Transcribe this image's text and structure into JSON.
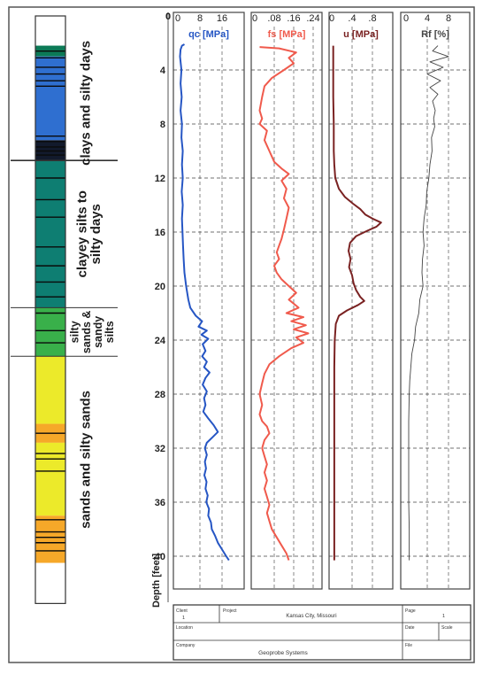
{
  "chart_data": {
    "type": "line",
    "depth_axis": {
      "label": "Depth [feet]",
      "range": [
        0,
        40
      ],
      "ticks": [
        4,
        8,
        12,
        16,
        20,
        24,
        28,
        32,
        36,
        40
      ]
    },
    "strata": [
      {
        "label": "clays and silty days",
        "top": 2.2,
        "bottom": 10.7
      },
      {
        "label": "clayey silts to silty days",
        "top": 10.7,
        "bottom": 21.6
      },
      {
        "label": "silty sands & sandy silts",
        "top": 21.6,
        "bottom": 25.2
      },
      {
        "label": "sands and silty sands",
        "top": 25.2,
        "bottom": 40.5
      }
    ],
    "soil_column": {
      "bands": [
        {
          "top": 0.0,
          "bottom": 2.2,
          "color": "#ffffff"
        },
        {
          "top": 2.2,
          "bottom": 3.0,
          "color": "#0c7a56"
        },
        {
          "top": 3.0,
          "bottom": 9.2,
          "color": "#2f6fd0"
        },
        {
          "top": 9.2,
          "bottom": 10.7,
          "color": "#121a2c"
        },
        {
          "top": 10.7,
          "bottom": 21.6,
          "color": "#0e7e72"
        },
        {
          "top": 21.6,
          "bottom": 25.2,
          "color": "#39b04a"
        },
        {
          "top": 25.2,
          "bottom": 30.2,
          "color": "#ecea2a"
        },
        {
          "top": 30.2,
          "bottom": 31.6,
          "color": "#f6a829"
        },
        {
          "top": 31.6,
          "bottom": 37.0,
          "color": "#ecea2a"
        },
        {
          "top": 37.0,
          "bottom": 40.5,
          "color": "#f6a829"
        },
        {
          "top": 40.5,
          "bottom": 43.5,
          "color": "#ffffff"
        }
      ],
      "lines": [
        2.6,
        3.1,
        3.8,
        4.3,
        4.8,
        5.2,
        8.9,
        9.3,
        9.7,
        10.0,
        10.3,
        12.0,
        13.6,
        14.9,
        17.1,
        18.5,
        19.7,
        20.8,
        22.0,
        23.3,
        24.2,
        30.9,
        32.4,
        32.8,
        33.7,
        37.3,
        38.2,
        38.6,
        39.0,
        39.6
      ]
    },
    "panels": [
      {
        "label": "qc [MPa]",
        "color": "#2656c4",
        "xlim": [
          0,
          24
        ],
        "x_ticks": [
          0,
          8,
          16
        ],
        "x_tick_labels": [
          "0",
          "8",
          "16"
        ],
        "points": [
          [
            2.4,
            2.1
          ],
          [
            1.5,
            2.2
          ],
          [
            1.0,
            2.5
          ],
          [
            0.8,
            3.0
          ],
          [
            1.3,
            4.0
          ],
          [
            1.0,
            5.0
          ],
          [
            1.4,
            6.0
          ],
          [
            1.0,
            7.0
          ],
          [
            1.5,
            8.0
          ],
          [
            1.3,
            9.0
          ],
          [
            1.8,
            10.0
          ],
          [
            1.5,
            11.0
          ],
          [
            1.8,
            12.0
          ],
          [
            1.4,
            13.0
          ],
          [
            1.8,
            14.0
          ],
          [
            1.5,
            15.0
          ],
          [
            1.7,
            16.0
          ],
          [
            1.9,
            17.0
          ],
          [
            2.1,
            18.0
          ],
          [
            2.4,
            19.0
          ],
          [
            3.0,
            20.0
          ],
          [
            3.8,
            21.0
          ],
          [
            4.5,
            21.6
          ],
          [
            6.5,
            22.2
          ],
          [
            8.8,
            22.6
          ],
          [
            7.5,
            23.0
          ],
          [
            10.5,
            23.3
          ],
          [
            8.5,
            23.6
          ],
          [
            11.0,
            23.9
          ],
          [
            9.0,
            24.3
          ],
          [
            10.0,
            24.8
          ],
          [
            8.8,
            25.2
          ],
          [
            10.5,
            25.6
          ],
          [
            9.5,
            26.0
          ],
          [
            11.5,
            26.4
          ],
          [
            10.0,
            26.8
          ],
          [
            9.0,
            27.3
          ],
          [
            10.5,
            27.8
          ],
          [
            9.5,
            28.3
          ],
          [
            10.0,
            28.8
          ],
          [
            9.2,
            29.3
          ],
          [
            11.0,
            29.8
          ],
          [
            13.0,
            30.3
          ],
          [
            14.5,
            30.8
          ],
          [
            12.5,
            31.2
          ],
          [
            10.5,
            31.6
          ],
          [
            9.8,
            32.0
          ],
          [
            10.5,
            32.5
          ],
          [
            9.8,
            33.0
          ],
          [
            10.2,
            33.5
          ],
          [
            9.6,
            34.0
          ],
          [
            10.4,
            34.5
          ],
          [
            10.0,
            35.0
          ],
          [
            10.8,
            35.5
          ],
          [
            10.3,
            36.0
          ],
          [
            11.3,
            36.5
          ],
          [
            11.0,
            37.0
          ],
          [
            12.0,
            37.5
          ],
          [
            12.3,
            38.0
          ],
          [
            13.5,
            38.5
          ],
          [
            14.5,
            39.0
          ],
          [
            16.0,
            39.5
          ],
          [
            17.5,
            40.0
          ],
          [
            18.5,
            40.3
          ]
        ]
      },
      {
        "label": "fs [MPa]",
        "color": "#f05a4c",
        "xlim": [
          0,
          0.24
        ],
        "x_ticks": [
          0,
          0.08,
          0.16,
          0.24
        ],
        "x_tick_labels": [
          "0",
          ".08",
          ".16",
          ".24"
        ],
        "points": [
          [
            0.02,
            2.3
          ],
          [
            0.1,
            2.4
          ],
          [
            0.17,
            2.7
          ],
          [
            0.14,
            3.1
          ],
          [
            0.16,
            3.5
          ],
          [
            0.12,
            4.0
          ],
          [
            0.07,
            4.6
          ],
          [
            0.04,
            5.2
          ],
          [
            0.03,
            6.0
          ],
          [
            0.02,
            7.0
          ],
          [
            0.03,
            7.6
          ],
          [
            0.02,
            8.0
          ],
          [
            0.05,
            8.5
          ],
          [
            0.04,
            9.2
          ],
          [
            0.06,
            10.0
          ],
          [
            0.08,
            10.8
          ],
          [
            0.11,
            11.3
          ],
          [
            0.14,
            11.7
          ],
          [
            0.11,
            12.2
          ],
          [
            0.13,
            12.8
          ],
          [
            0.12,
            13.5
          ],
          [
            0.14,
            14.2
          ],
          [
            0.13,
            15.0
          ],
          [
            0.12,
            15.8
          ],
          [
            0.11,
            16.5
          ],
          [
            0.1,
            17.0
          ],
          [
            0.09,
            17.5
          ],
          [
            0.1,
            18.0
          ],
          [
            0.08,
            18.5
          ],
          [
            0.09,
            19.0
          ],
          [
            0.11,
            19.5
          ],
          [
            0.14,
            20.0
          ],
          [
            0.17,
            20.5
          ],
          [
            0.14,
            21.0
          ],
          [
            0.18,
            21.6
          ],
          [
            0.13,
            22.0
          ],
          [
            0.2,
            22.3
          ],
          [
            0.15,
            22.6
          ],
          [
            0.21,
            22.9
          ],
          [
            0.16,
            23.2
          ],
          [
            0.22,
            23.5
          ],
          [
            0.17,
            23.8
          ],
          [
            0.2,
            24.2
          ],
          [
            0.15,
            24.6
          ],
          [
            0.1,
            25.2
          ],
          [
            0.06,
            25.8
          ],
          [
            0.04,
            26.5
          ],
          [
            0.03,
            27.2
          ],
          [
            0.02,
            28.0
          ],
          [
            0.03,
            28.8
          ],
          [
            0.02,
            29.5
          ],
          [
            0.03,
            30.0
          ],
          [
            0.05,
            30.4
          ],
          [
            0.06,
            30.9
          ],
          [
            0.04,
            31.4
          ],
          [
            0.03,
            32.0
          ],
          [
            0.04,
            32.6
          ],
          [
            0.05,
            33.2
          ],
          [
            0.04,
            33.8
          ],
          [
            0.05,
            34.4
          ],
          [
            0.04,
            35.0
          ],
          [
            0.05,
            35.6
          ],
          [
            0.06,
            36.2
          ],
          [
            0.05,
            36.8
          ],
          [
            0.06,
            37.4
          ],
          [
            0.07,
            38.0
          ],
          [
            0.09,
            38.6
          ],
          [
            0.11,
            39.2
          ],
          [
            0.13,
            39.8
          ],
          [
            0.14,
            40.3
          ]
        ]
      },
      {
        "label": "u [MPa]",
        "color": "#7a2222",
        "xlim": [
          0,
          1.2
        ],
        "x_ticks": [
          0,
          0.4,
          0.8
        ],
        "x_tick_labels": [
          "0",
          ".4",
          ".8"
        ],
        "points": [
          [
            0.03,
            2.2
          ],
          [
            0.03,
            4.0
          ],
          [
            0.03,
            6.0
          ],
          [
            0.04,
            8.0
          ],
          [
            0.04,
            10.0
          ],
          [
            0.05,
            11.0
          ],
          [
            0.07,
            12.0
          ],
          [
            0.14,
            12.8
          ],
          [
            0.26,
            13.4
          ],
          [
            0.42,
            13.9
          ],
          [
            0.56,
            14.3
          ],
          [
            0.66,
            14.7
          ],
          [
            0.8,
            15.0
          ],
          [
            0.97,
            15.3
          ],
          [
            0.88,
            15.6
          ],
          [
            0.7,
            15.9
          ],
          [
            0.48,
            16.3
          ],
          [
            0.36,
            16.8
          ],
          [
            0.33,
            17.4
          ],
          [
            0.37,
            18.0
          ],
          [
            0.34,
            18.6
          ],
          [
            0.4,
            19.2
          ],
          [
            0.43,
            19.8
          ],
          [
            0.48,
            20.3
          ],
          [
            0.56,
            20.8
          ],
          [
            0.64,
            21.1
          ],
          [
            0.52,
            21.4
          ],
          [
            0.3,
            21.8
          ],
          [
            0.14,
            22.2
          ],
          [
            0.08,
            22.8
          ],
          [
            0.06,
            24.0
          ],
          [
            0.05,
            26.0
          ],
          [
            0.05,
            28.0
          ],
          [
            0.05,
            30.0
          ],
          [
            0.05,
            32.0
          ],
          [
            0.05,
            34.0
          ],
          [
            0.05,
            36.0
          ],
          [
            0.05,
            38.0
          ],
          [
            0.05,
            40.3
          ]
        ]
      },
      {
        "label": "Rf [%]",
        "color": "#444444",
        "xlim": [
          0,
          12
        ],
        "x_ticks": [
          0,
          4,
          8
        ],
        "x_tick_labels": [
          "0",
          "4",
          "8"
        ],
        "points": [
          [
            6.0,
            2.2
          ],
          [
            5.0,
            2.6
          ],
          [
            8.0,
            3.0
          ],
          [
            4.5,
            3.4
          ],
          [
            7.0,
            3.8
          ],
          [
            4.0,
            4.3
          ],
          [
            6.5,
            4.8
          ],
          [
            4.5,
            5.3
          ],
          [
            6.0,
            5.8
          ],
          [
            5.0,
            6.3
          ],
          [
            5.5,
            7.0
          ],
          [
            5.2,
            7.6
          ],
          [
            5.4,
            8.2
          ],
          [
            4.8,
            9.0
          ],
          [
            4.9,
            10.0
          ],
          [
            4.5,
            11.0
          ],
          [
            4.3,
            12.0
          ],
          [
            3.9,
            13.0
          ],
          [
            3.8,
            14.0
          ],
          [
            3.4,
            15.0
          ],
          [
            3.2,
            16.0
          ],
          [
            3.4,
            17.0
          ],
          [
            3.1,
            18.0
          ],
          [
            3.0,
            19.0
          ],
          [
            3.2,
            20.0
          ],
          [
            2.6,
            21.0
          ],
          [
            2.4,
            22.0
          ],
          [
            1.8,
            23.0
          ],
          [
            1.6,
            24.0
          ],
          [
            1.1,
            25.0
          ],
          [
            0.9,
            26.0
          ],
          [
            0.7,
            27.0
          ],
          [
            0.6,
            28.0
          ],
          [
            0.5,
            30.0
          ],
          [
            0.5,
            32.0
          ],
          [
            0.5,
            34.0
          ],
          [
            0.5,
            36.0
          ],
          [
            0.6,
            38.0
          ],
          [
            0.6,
            40.3
          ]
        ]
      }
    ],
    "title_block": {
      "labels": [
        "Client",
        "Project",
        "Location",
        "Date",
        "Scale",
        "File",
        "Company",
        "Page"
      ],
      "location": "Kansas City, Missouri",
      "company": "Geoprobe Systems",
      "project": "1",
      "page": "1"
    }
  }
}
